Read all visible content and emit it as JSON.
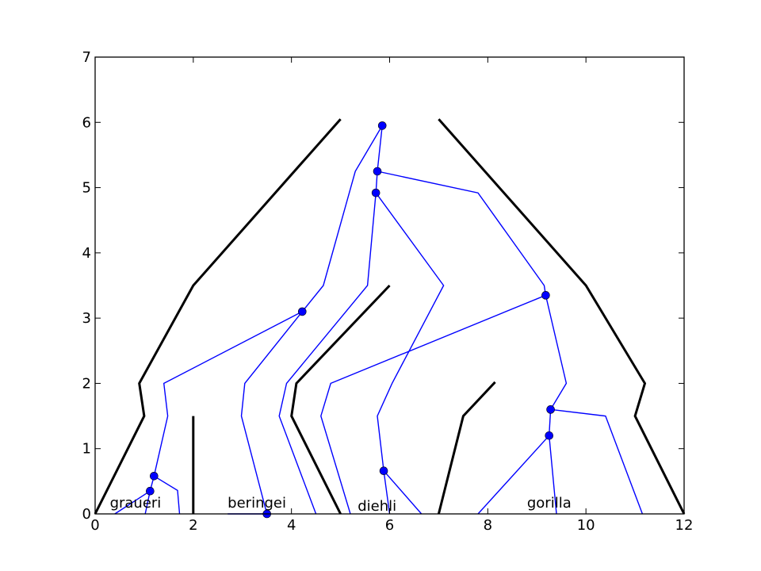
{
  "chart_data": {
    "type": "diagram",
    "xlim": [
      0,
      12
    ],
    "ylim": [
      0,
      7
    ],
    "x_ticks": [
      0,
      2,
      4,
      6,
      8,
      10,
      12
    ],
    "y_ticks": [
      0,
      1,
      2,
      3,
      4,
      5,
      6,
      7
    ],
    "grid": false,
    "colors": {
      "tree": "#000000",
      "gene": "#0000ff",
      "node": "#0000ff"
    },
    "species_labels": [
      {
        "text": "graueri",
        "x": 0.3,
        "y": 0.05
      },
      {
        "text": "beringei",
        "x": 2.7,
        "y": 0.05
      },
      {
        "text": "diehli",
        "x": 5.35,
        "y": 0.0
      },
      {
        "text": "gorilla",
        "x": 8.8,
        "y": 0.05
      }
    ],
    "species_tree": [
      {
        "points": [
          [
            0,
            0
          ],
          [
            1,
            1.5
          ],
          [
            0.9,
            2
          ],
          [
            2,
            3.5
          ],
          [
            5,
            6.05
          ]
        ]
      },
      {
        "points": [
          [
            12,
            0
          ],
          [
            11,
            1.5
          ],
          [
            11.2,
            2
          ],
          [
            10,
            3.5
          ],
          [
            7,
            6.05
          ]
        ]
      },
      {
        "points": [
          [
            2,
            0
          ],
          [
            2,
            1.5
          ]
        ]
      },
      {
        "points": [
          [
            5,
            0
          ],
          [
            4,
            1.5
          ],
          [
            4.1,
            2
          ],
          [
            6,
            3.5
          ]
        ]
      },
      {
        "points": [
          [
            7,
            0
          ],
          [
            7.5,
            1.5
          ],
          [
            8.15,
            2.02
          ]
        ]
      }
    ],
    "gene_tree": [
      {
        "points": [
          [
            5.85,
            5.95
          ],
          [
            5.75,
            5.25
          ],
          [
            5.72,
            4.92
          ]
        ]
      },
      {
        "points": [
          [
            5.85,
            5.95
          ],
          [
            5.3,
            5.25
          ],
          [
            4.65,
            3.5
          ],
          [
            4.22,
            3.1
          ]
        ]
      },
      {
        "points": [
          [
            4.22,
            3.1
          ],
          [
            1.4,
            2
          ],
          [
            1.48,
            1.5
          ],
          [
            1.2,
            0.58
          ]
        ]
      },
      {
        "points": [
          [
            1.2,
            0.58
          ],
          [
            1.12,
            0.35
          ]
        ]
      },
      {
        "points": [
          [
            1.12,
            0.35
          ],
          [
            0.4,
            0
          ]
        ]
      },
      {
        "points": [
          [
            1.12,
            0.35
          ],
          [
            1.02,
            0
          ]
        ]
      },
      {
        "points": [
          [
            1.2,
            0.58
          ],
          [
            1.68,
            0.36
          ],
          [
            1.72,
            0
          ]
        ]
      },
      {
        "points": [
          [
            4.22,
            3.1
          ],
          [
            3.05,
            2
          ],
          [
            2.98,
            1.5
          ],
          [
            3.5,
            0
          ]
        ]
      },
      {
        "points": [
          [
            3.5,
            0
          ],
          [
            2.7,
            0
          ]
        ]
      },
      {
        "points": [
          [
            5.72,
            4.92
          ],
          [
            5.55,
            3.5
          ],
          [
            3.9,
            2
          ],
          [
            3.75,
            1.5
          ],
          [
            4.5,
            0
          ]
        ]
      },
      {
        "points": [
          [
            5.72,
            4.92
          ],
          [
            7.1,
            3.5
          ],
          [
            6.05,
            2
          ],
          [
            5.75,
            1.5
          ],
          [
            5.88,
            0.66
          ]
        ]
      },
      {
        "points": [
          [
            5.88,
            0.66
          ],
          [
            6,
            0
          ]
        ]
      },
      {
        "points": [
          [
            5.88,
            0.66
          ],
          [
            6.65,
            0
          ]
        ]
      },
      {
        "points": [
          [
            5.75,
            5.25
          ],
          [
            7.8,
            4.92
          ],
          [
            9.15,
            3.5
          ],
          [
            9.18,
            3.35
          ]
        ]
      },
      {
        "points": [
          [
            9.18,
            3.35
          ],
          [
            4.8,
            2
          ],
          [
            4.6,
            1.5
          ],
          [
            5.2,
            0
          ]
        ]
      },
      {
        "points": [
          [
            9.18,
            3.35
          ],
          [
            9.6,
            2
          ],
          [
            9.28,
            1.6
          ]
        ]
      },
      {
        "points": [
          [
            9.28,
            1.6
          ],
          [
            9.25,
            1.2
          ]
        ]
      },
      {
        "points": [
          [
            9.25,
            1.2
          ],
          [
            7.8,
            0
          ]
        ]
      },
      {
        "points": [
          [
            9.25,
            1.2
          ],
          [
            9.4,
            0
          ]
        ]
      },
      {
        "points": [
          [
            9.28,
            1.6
          ],
          [
            10.4,
            1.5
          ],
          [
            11.15,
            0
          ]
        ]
      }
    ],
    "nodes": [
      [
        5.85,
        5.95
      ],
      [
        5.75,
        5.25
      ],
      [
        5.72,
        4.92
      ],
      [
        4.22,
        3.1
      ],
      [
        9.18,
        3.35
      ],
      [
        9.28,
        1.6
      ],
      [
        9.25,
        1.2
      ],
      [
        5.88,
        0.66
      ],
      [
        1.2,
        0.58
      ],
      [
        1.12,
        0.35
      ],
      [
        3.5,
        0
      ]
    ]
  }
}
